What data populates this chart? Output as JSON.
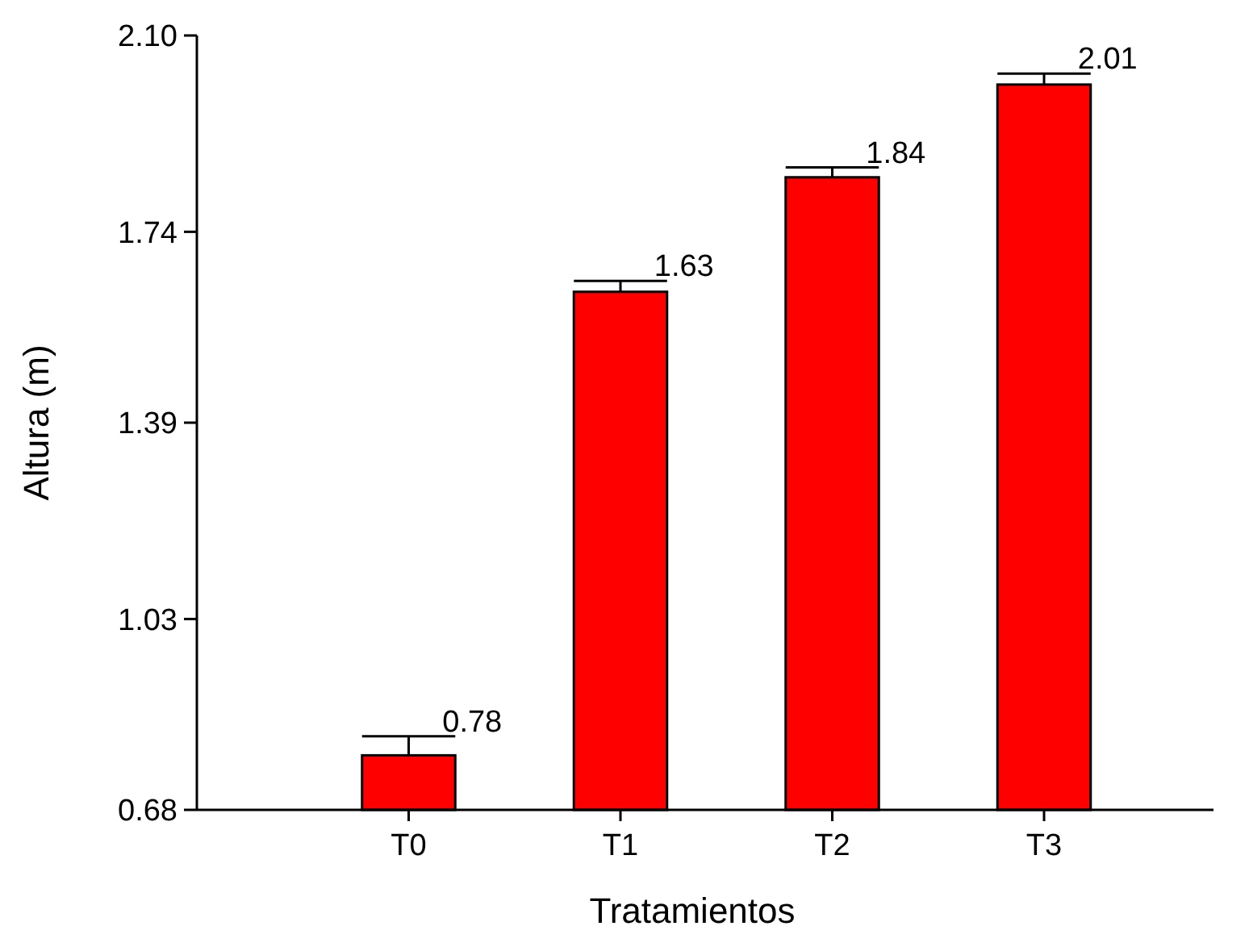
{
  "chart_data": {
    "type": "bar",
    "xlabel": "Tratamientos",
    "ylabel": "Altura (m)",
    "categories": [
      "T0",
      "T1",
      "T2",
      "T3"
    ],
    "values": [
      0.78,
      1.63,
      1.84,
      2.01
    ],
    "errors": [
      0.035,
      0.02,
      0.018,
      0.02
    ],
    "color": "#ff0000",
    "data_labels": true,
    "ylim": [
      0.68,
      2.1
    ],
    "yticks": [
      0.68,
      1.03,
      1.39,
      1.74,
      {
        "value": 2.1,
        "label": "2.10"
      }
    ],
    "grid": false
  }
}
